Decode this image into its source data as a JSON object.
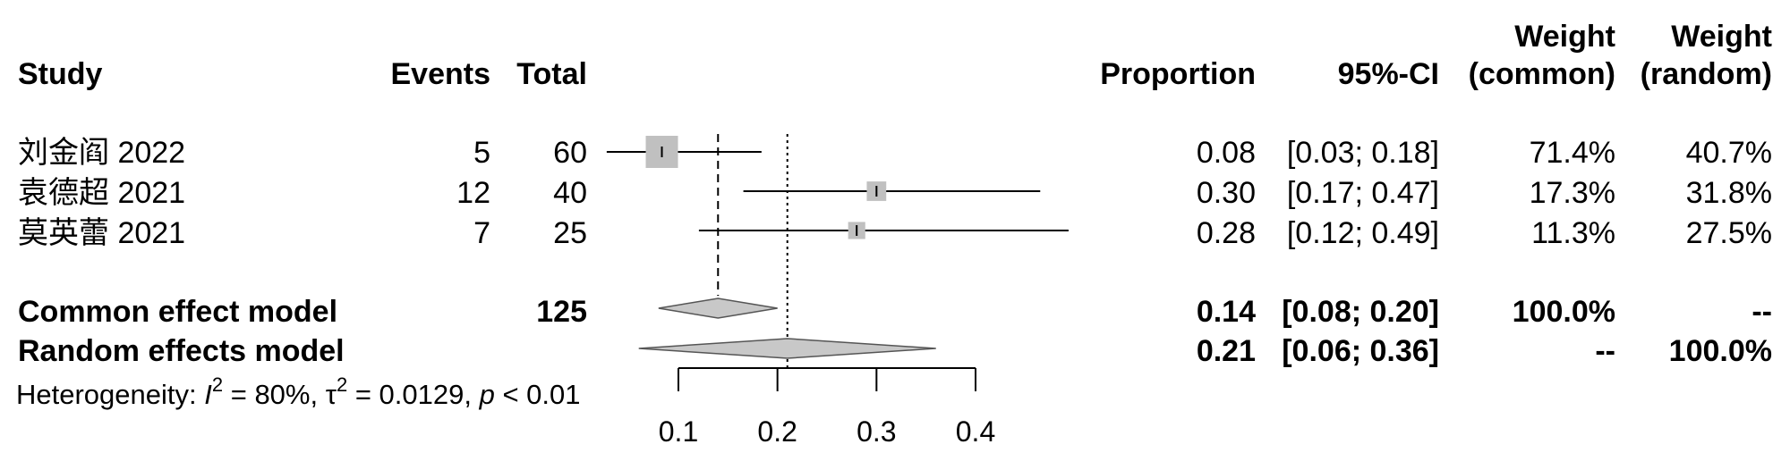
{
  "chart_data": {
    "type": "forest",
    "columns": {
      "study": "Study",
      "events": "Events",
      "total": "Total",
      "proportion": "Proportion",
      "ci": "95%-CI",
      "weight_common": [
        "Weight",
        "(common)"
      ],
      "weight_random": [
        "Weight",
        "(random)"
      ]
    },
    "studies": [
      {
        "study": "刘金阎 2022",
        "events": "5",
        "total": "60",
        "proportion": 0.0833,
        "lower": 0.0276,
        "upper": 0.1839,
        "proportion_text": "0.08",
        "ci_text": "[0.03; 0.18]",
        "weight_common": "71.4%",
        "weight_random": "40.7%"
      },
      {
        "study": "袁德超 2021",
        "events": "12",
        "total": "40",
        "proportion": 0.3,
        "lower": 0.1656,
        "upper": 0.4653,
        "proportion_text": "0.30",
        "ci_text": "[0.17; 0.47]",
        "weight_common": "17.3%",
        "weight_random": "31.8%"
      },
      {
        "study": "莫英蕾 2021",
        "events": "7",
        "total": "25",
        "proportion": 0.28,
        "lower": 0.1207,
        "upper": 0.4939,
        "proportion_text": "0.28",
        "ci_text": "[0.12; 0.49]",
        "weight_common": "11.3%",
        "weight_random": "27.5%"
      }
    ],
    "models": [
      {
        "name": "Common effect model",
        "total": "125",
        "estimate": 0.14,
        "lower": 0.08,
        "upper": 0.2,
        "proportion_text": "0.14",
        "ci_text": "[0.08; 0.20]",
        "weight_common": "100.0%",
        "weight_random": "--"
      },
      {
        "name": "Random effects model",
        "total": "",
        "estimate": 0.21,
        "lower": 0.06,
        "upper": 0.36,
        "proportion_text": "0.21",
        "ci_text": "[0.06; 0.36]",
        "weight_common": "--",
        "weight_random": "100.0%"
      }
    ],
    "heterogeneity": {
      "prefix": "Heterogeneity: ",
      "i2_symbol": "I",
      "i2_value": " = 80%, ",
      "tau_symbol": "τ",
      "tau_value": " = 0.0129, ",
      "p_symbol": "p",
      "p_value": " < 0.01",
      "superscript": "2"
    },
    "x_axis": {
      "ticks": [
        0.1,
        0.2,
        0.3,
        0.4
      ],
      "tick_labels": [
        "0.1",
        "0.2",
        "0.3",
        "0.4"
      ],
      "xlim": [
        0.1,
        0.4
      ]
    },
    "colors": {
      "square": "#c0c0c0",
      "diamond": "#c8c8c8",
      "line": "#000000"
    }
  }
}
